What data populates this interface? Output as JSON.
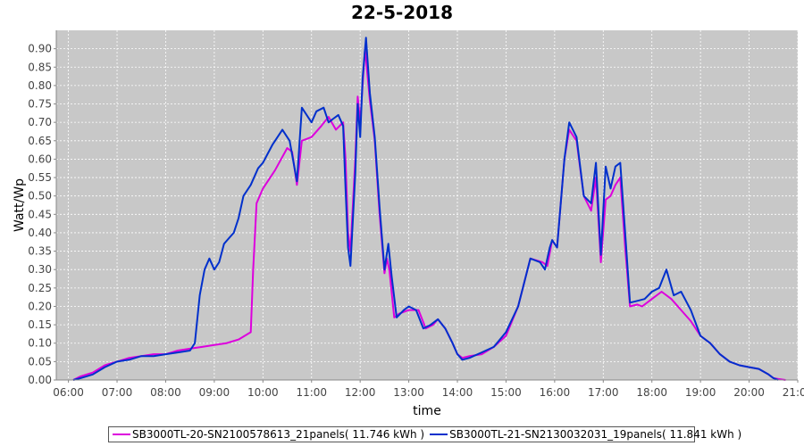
{
  "chart_data": {
    "type": "line",
    "title": "22-5-2018",
    "xlabel": "time",
    "ylabel": "Watt/Wp",
    "xlim": [
      5.75,
      21.0
    ],
    "ylim": [
      0.0,
      0.95
    ],
    "x_ticks": [
      "06:00",
      "07:00",
      "08:00",
      "09:00",
      "10:00",
      "11:00",
      "12:00",
      "13:00",
      "14:00",
      "15:00",
      "16:00",
      "17:00",
      "18:00",
      "19:00",
      "20:00",
      "21:00"
    ],
    "x_tick_values": [
      6,
      7,
      8,
      9,
      10,
      11,
      12,
      13,
      14,
      15,
      16,
      17,
      18,
      19,
      20,
      21
    ],
    "y_ticks": [
      "0.00",
      "0.05",
      "0.10",
      "0.15",
      "0.20",
      "0.25",
      "0.30",
      "0.35",
      "0.40",
      "0.45",
      "0.50",
      "0.55",
      "0.60",
      "0.65",
      "0.70",
      "0.75",
      "0.80",
      "0.85",
      "0.90"
    ],
    "y_tick_values": [
      0,
      0.05,
      0.1,
      0.15,
      0.2,
      0.25,
      0.3,
      0.35,
      0.4,
      0.45,
      0.5,
      0.55,
      0.6,
      0.65,
      0.7,
      0.75,
      0.8,
      0.85,
      0.9
    ],
    "grid": true,
    "background": "#c8c8c8",
    "legend_position": "bottom",
    "series": [
      {
        "name": "SB3000TL-20-SN2100578613_21panels( 11.746 kWh )",
        "color": "#dd00dd",
        "points": [
          [
            6.1,
            0.0
          ],
          [
            6.25,
            0.01
          ],
          [
            6.5,
            0.02
          ],
          [
            6.75,
            0.04
          ],
          [
            7.0,
            0.05
          ],
          [
            7.25,
            0.06
          ],
          [
            7.5,
            0.065
          ],
          [
            7.75,
            0.07
          ],
          [
            8.0,
            0.07
          ],
          [
            8.25,
            0.08
          ],
          [
            8.5,
            0.085
          ],
          [
            8.75,
            0.09
          ],
          [
            9.0,
            0.095
          ],
          [
            9.25,
            0.1
          ],
          [
            9.5,
            0.11
          ],
          [
            9.75,
            0.13
          ],
          [
            9.8,
            0.3
          ],
          [
            9.87,
            0.48
          ],
          [
            10.0,
            0.52
          ],
          [
            10.25,
            0.57
          ],
          [
            10.5,
            0.63
          ],
          [
            10.6,
            0.62
          ],
          [
            10.7,
            0.53
          ],
          [
            10.8,
            0.65
          ],
          [
            11.0,
            0.66
          ],
          [
            11.2,
            0.69
          ],
          [
            11.35,
            0.715
          ],
          [
            11.5,
            0.68
          ],
          [
            11.65,
            0.7
          ],
          [
            11.7,
            0.6
          ],
          [
            11.75,
            0.4
          ],
          [
            11.8,
            0.35
          ],
          [
            11.9,
            0.6
          ],
          [
            11.95,
            0.77
          ],
          [
            12.0,
            0.7
          ],
          [
            12.05,
            0.8
          ],
          [
            12.1,
            0.9
          ],
          [
            12.2,
            0.76
          ],
          [
            12.3,
            0.65
          ],
          [
            12.4,
            0.45
          ],
          [
            12.5,
            0.29
          ],
          [
            12.55,
            0.33
          ],
          [
            12.6,
            0.3
          ],
          [
            12.7,
            0.17
          ],
          [
            12.8,
            0.18
          ],
          [
            13.0,
            0.19
          ],
          [
            13.2,
            0.19
          ],
          [
            13.35,
            0.14
          ],
          [
            13.5,
            0.15
          ],
          [
            13.6,
            0.165
          ],
          [
            13.75,
            0.14
          ],
          [
            13.9,
            0.1
          ],
          [
            14.0,
            0.07
          ],
          [
            14.1,
            0.06
          ],
          [
            14.25,
            0.065
          ],
          [
            14.5,
            0.07
          ],
          [
            14.75,
            0.09
          ],
          [
            15.0,
            0.12
          ],
          [
            15.25,
            0.2
          ],
          [
            15.5,
            0.33
          ],
          [
            15.75,
            0.32
          ],
          [
            15.85,
            0.31
          ],
          [
            15.95,
            0.38
          ],
          [
            16.05,
            0.36
          ],
          [
            16.2,
            0.6
          ],
          [
            16.3,
            0.68
          ],
          [
            16.45,
            0.65
          ],
          [
            16.6,
            0.5
          ],
          [
            16.75,
            0.46
          ],
          [
            16.85,
            0.55
          ],
          [
            16.95,
            0.32
          ],
          [
            17.05,
            0.49
          ],
          [
            17.15,
            0.5
          ],
          [
            17.25,
            0.53
          ],
          [
            17.35,
            0.55
          ],
          [
            17.45,
            0.36
          ],
          [
            17.55,
            0.2
          ],
          [
            17.7,
            0.205
          ],
          [
            17.8,
            0.2
          ],
          [
            18.0,
            0.22
          ],
          [
            18.2,
            0.24
          ],
          [
            18.4,
            0.22
          ],
          [
            18.6,
            0.19
          ],
          [
            18.8,
            0.16
          ],
          [
            19.0,
            0.12
          ],
          [
            19.2,
            0.1
          ],
          [
            19.4,
            0.07
          ],
          [
            19.6,
            0.05
          ],
          [
            19.8,
            0.04
          ],
          [
            20.0,
            0.035
          ],
          [
            20.2,
            0.03
          ],
          [
            20.4,
            0.015
          ],
          [
            20.5,
            0.005
          ],
          [
            20.6,
            0.003
          ],
          [
            20.75,
            0.0
          ]
        ]
      },
      {
        "name": "SB3000TL-21-SN2130032031_19panels( 11.841 kWh )",
        "color": "#0030cc",
        "points": [
          [
            6.1,
            0.0
          ],
          [
            6.25,
            0.005
          ],
          [
            6.5,
            0.015
          ],
          [
            6.75,
            0.035
          ],
          [
            7.0,
            0.05
          ],
          [
            7.25,
            0.055
          ],
          [
            7.5,
            0.065
          ],
          [
            7.75,
            0.065
          ],
          [
            8.0,
            0.07
          ],
          [
            8.25,
            0.075
          ],
          [
            8.5,
            0.08
          ],
          [
            8.6,
            0.1
          ],
          [
            8.7,
            0.23
          ],
          [
            8.8,
            0.3
          ],
          [
            8.9,
            0.33
          ],
          [
            9.0,
            0.3
          ],
          [
            9.1,
            0.32
          ],
          [
            9.2,
            0.37
          ],
          [
            9.4,
            0.4
          ],
          [
            9.5,
            0.44
          ],
          [
            9.6,
            0.5
          ],
          [
            9.75,
            0.53
          ],
          [
            9.9,
            0.575
          ],
          [
            10.0,
            0.59
          ],
          [
            10.2,
            0.64
          ],
          [
            10.4,
            0.68
          ],
          [
            10.55,
            0.65
          ],
          [
            10.7,
            0.54
          ],
          [
            10.8,
            0.74
          ],
          [
            10.9,
            0.72
          ],
          [
            11.0,
            0.7
          ],
          [
            11.1,
            0.73
          ],
          [
            11.25,
            0.74
          ],
          [
            11.35,
            0.7
          ],
          [
            11.45,
            0.71
          ],
          [
            11.55,
            0.72
          ],
          [
            11.65,
            0.69
          ],
          [
            11.7,
            0.52
          ],
          [
            11.75,
            0.36
          ],
          [
            11.8,
            0.31
          ],
          [
            11.9,
            0.56
          ],
          [
            11.95,
            0.75
          ],
          [
            12.0,
            0.66
          ],
          [
            12.05,
            0.82
          ],
          [
            12.12,
            0.93
          ],
          [
            12.2,
            0.78
          ],
          [
            12.3,
            0.66
          ],
          [
            12.4,
            0.47
          ],
          [
            12.5,
            0.3
          ],
          [
            12.58,
            0.37
          ],
          [
            12.65,
            0.28
          ],
          [
            12.75,
            0.17
          ],
          [
            12.9,
            0.19
          ],
          [
            13.0,
            0.2
          ],
          [
            13.15,
            0.19
          ],
          [
            13.3,
            0.14
          ],
          [
            13.45,
            0.15
          ],
          [
            13.6,
            0.165
          ],
          [
            13.75,
            0.14
          ],
          [
            13.9,
            0.1
          ],
          [
            14.0,
            0.07
          ],
          [
            14.1,
            0.055
          ],
          [
            14.25,
            0.06
          ],
          [
            14.5,
            0.075
          ],
          [
            14.75,
            0.09
          ],
          [
            15.0,
            0.13
          ],
          [
            15.25,
            0.2
          ],
          [
            15.5,
            0.33
          ],
          [
            15.7,
            0.32
          ],
          [
            15.8,
            0.3
          ],
          [
            15.9,
            0.36
          ],
          [
            15.95,
            0.38
          ],
          [
            16.05,
            0.36
          ],
          [
            16.2,
            0.6
          ],
          [
            16.3,
            0.7
          ],
          [
            16.45,
            0.66
          ],
          [
            16.6,
            0.5
          ],
          [
            16.75,
            0.48
          ],
          [
            16.85,
            0.59
          ],
          [
            16.95,
            0.34
          ],
          [
            17.05,
            0.58
          ],
          [
            17.15,
            0.52
          ],
          [
            17.25,
            0.58
          ],
          [
            17.35,
            0.59
          ],
          [
            17.45,
            0.4
          ],
          [
            17.55,
            0.21
          ],
          [
            17.7,
            0.215
          ],
          [
            17.85,
            0.22
          ],
          [
            18.0,
            0.24
          ],
          [
            18.15,
            0.25
          ],
          [
            18.3,
            0.3
          ],
          [
            18.45,
            0.23
          ],
          [
            18.6,
            0.24
          ],
          [
            18.8,
            0.19
          ],
          [
            19.0,
            0.12
          ],
          [
            19.2,
            0.1
          ],
          [
            19.4,
            0.07
          ],
          [
            19.6,
            0.05
          ],
          [
            19.8,
            0.04
          ],
          [
            20.0,
            0.035
          ],
          [
            20.2,
            0.03
          ],
          [
            20.4,
            0.015
          ],
          [
            20.5,
            0.005
          ],
          [
            20.6,
            0.0
          ]
        ]
      }
    ]
  }
}
